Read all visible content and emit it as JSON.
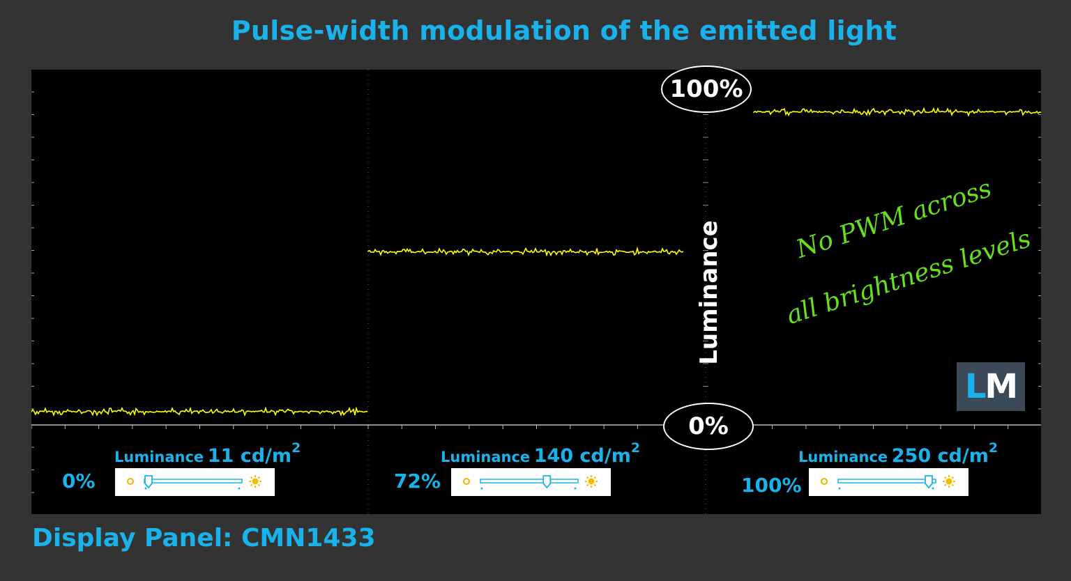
{
  "title": "Pulse-width modulation of the emitted light",
  "panel_label": "Display Panel: CMN1433",
  "colors": {
    "accent": "#1ab2ea",
    "trace": "#ffff00",
    "note": "#66e01a"
  },
  "markers": {
    "top": "100%",
    "bottom": "0%"
  },
  "axis_label": "Luminance",
  "note": {
    "line1": "No PWM across",
    "line2": "all brightness levels"
  },
  "logo": {
    "l": "L",
    "m": "M"
  },
  "chart_data": {
    "type": "line",
    "ylabel": "Luminance",
    "ylim": [
      0,
      100
    ],
    "grid": true,
    "series": [
      {
        "segment": 1,
        "level_percent": 4,
        "slider": "0%",
        "luminance_word": "Luminance",
        "luminance_value": "11 cd/m",
        "luminance_sup": "2",
        "slider_fraction": 0.0
      },
      {
        "segment": 2,
        "level_percent": 52,
        "slider": "72%",
        "luminance_word": "Luminance",
        "luminance_value": "140 cd/m",
        "luminance_sup": "2",
        "slider_fraction": 0.72
      },
      {
        "segment": 3,
        "level_percent": 94,
        "slider": "100%",
        "luminance_word": "Luminance",
        "luminance_value": "250 cd/m",
        "luminance_sup": "2",
        "slider_fraction": 1.0
      }
    ]
  }
}
